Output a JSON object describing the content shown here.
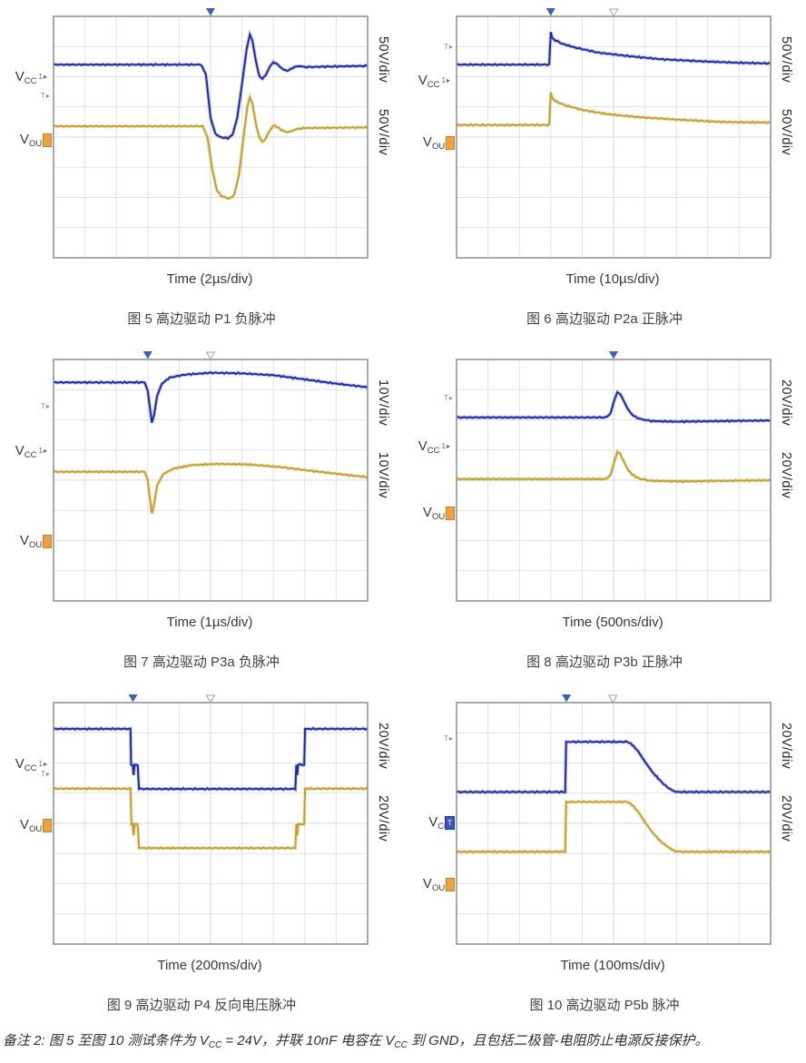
{
  "colors": {
    "vcc": "#1c2aa6",
    "vout": "#c3a02d",
    "grid": "#dfe1e5",
    "grid_center": "#c3c7cc",
    "border": "#8f9499",
    "filled_marker": "#3763b8",
    "hollow_marker": "#9aa2a9",
    "vout_marker_box": "#efa13e",
    "vcc_marker_box": "#3b55c4"
  },
  "labels": {
    "vcc_main": "V",
    "vcc_sub": "CC",
    "vout_main": "V",
    "vout_sub": "OUT",
    "ch1_marker": "1",
    "t_marker": "T"
  },
  "note": {
    "p1": "备注 2: 图 5 至图 10 测试条件为 V",
    "s1": "CC",
    "p2": " = 24V，并联 10nF 电容在 V",
    "s2": "CC",
    "p3": " 到 GND，且包括二极管-电阻防止电源反接保护。"
  },
  "chart_data": [
    {
      "type": "line",
      "caption": "图 5 高边驱动 P1 负脉冲",
      "xlabel": "Time (2µs/div)",
      "scale_labels": [
        "50V/div",
        "50V/div"
      ],
      "x_divisions": 10,
      "y_divisions": 8,
      "trigger": {
        "filled_x": 5.0,
        "hollow_x": null
      },
      "label_y": {
        "vcc": 0.255,
        "vout": 0.515,
        "t": 0.335
      },
      "vcc_marker": "arrow",
      "series": [
        {
          "name": "VCC",
          "color_key": "vcc",
          "points": [
            [
              0,
              1.6
            ],
            [
              4.7,
              1.6
            ],
            [
              4.85,
              1.92
            ],
            [
              5.0,
              3.36
            ],
            [
              5.15,
              3.88
            ],
            [
              5.3,
              4.0
            ],
            [
              5.55,
              4.04
            ],
            [
              5.7,
              3.92
            ],
            [
              5.85,
              3.36
            ],
            [
              6.0,
              2.24
            ],
            [
              6.15,
              1.08
            ],
            [
              6.25,
              0.6
            ],
            [
              6.33,
              0.8
            ],
            [
              6.45,
              1.52
            ],
            [
              6.55,
              1.96
            ],
            [
              6.65,
              2.08
            ],
            [
              6.75,
              1.96
            ],
            [
              6.9,
              1.64
            ],
            [
              7.0,
              1.52
            ],
            [
              7.15,
              1.6
            ],
            [
              7.3,
              1.76
            ],
            [
              7.45,
              1.8
            ],
            [
              7.6,
              1.72
            ],
            [
              7.8,
              1.64
            ],
            [
              8.0,
              1.68
            ],
            [
              10,
              1.64
            ]
          ]
        },
        {
          "name": "VOUT",
          "color_key": "vout",
          "points": [
            [
              0,
              3.64
            ],
            [
              4.75,
              3.64
            ],
            [
              4.9,
              4.0
            ],
            [
              5.05,
              5.04
            ],
            [
              5.2,
              5.76
            ],
            [
              5.35,
              5.96
            ],
            [
              5.6,
              6.04
            ],
            [
              5.75,
              5.92
            ],
            [
              5.9,
              5.28
            ],
            [
              6.05,
              4.0
            ],
            [
              6.17,
              3.0
            ],
            [
              6.25,
              2.68
            ],
            [
              6.33,
              2.88
            ],
            [
              6.45,
              3.6
            ],
            [
              6.55,
              4.0
            ],
            [
              6.65,
              4.16
            ],
            [
              6.75,
              4.04
            ],
            [
              6.9,
              3.76
            ],
            [
              7.0,
              3.62
            ],
            [
              7.15,
              3.68
            ],
            [
              7.3,
              3.8
            ],
            [
              7.5,
              3.84
            ],
            [
              7.7,
              3.74
            ],
            [
              8.0,
              3.7
            ],
            [
              10,
              3.68
            ]
          ]
        }
      ]
    },
    {
      "type": "line",
      "caption": "图 6 高边驱动 P2a 正脉冲",
      "xlabel": "Time (10µs/div)",
      "scale_labels": [
        "50V/div",
        "50V/div"
      ],
      "x_divisions": 10,
      "y_divisions": 8,
      "trigger": {
        "filled_x": 3.0,
        "hollow_x": 5.0
      },
      "label_y": {
        "vcc": 0.27,
        "vout": 0.525,
        "t": 0.13
      },
      "vcc_marker": "arrow",
      "series": [
        {
          "name": "VCC",
          "color_key": "vcc",
          "points": [
            [
              0,
              1.6
            ],
            [
              2.95,
              1.6
            ],
            [
              3.0,
              0.52
            ],
            [
              3.05,
              0.72
            ],
            [
              3.15,
              0.8
            ],
            [
              3.4,
              0.92
            ],
            [
              3.8,
              1.04
            ],
            [
              4.5,
              1.2
            ],
            [
              5.5,
              1.32
            ],
            [
              6.5,
              1.42
            ],
            [
              7.8,
              1.49
            ],
            [
              9.0,
              1.54
            ],
            [
              10,
              1.56
            ]
          ]
        },
        {
          "name": "VOUT",
          "color_key": "vout",
          "points": [
            [
              0,
              3.6
            ],
            [
              2.95,
              3.6
            ],
            [
              3.0,
              2.52
            ],
            [
              3.05,
              2.72
            ],
            [
              3.2,
              2.84
            ],
            [
              3.5,
              2.96
            ],
            [
              4.0,
              3.1
            ],
            [
              4.8,
              3.24
            ],
            [
              5.8,
              3.34
            ],
            [
              7.0,
              3.42
            ],
            [
              8.5,
              3.5
            ],
            [
              10,
              3.52
            ]
          ]
        }
      ]
    },
    {
      "type": "line",
      "caption": "图 7 高边驱动 P3a 负脉冲",
      "xlabel": "Time (1µs/div)",
      "scale_labels": [
        "10V/div",
        "10V/div"
      ],
      "x_divisions": 10,
      "y_divisions": 8,
      "trigger": {
        "filled_x": 3.0,
        "hollow_x": 5.0
      },
      "label_y": {
        "vcc": 0.385,
        "vout": 0.755,
        "t": 0.2
      },
      "vcc_marker": "arrow",
      "series": [
        {
          "name": "VCC",
          "color_key": "vcc",
          "points": [
            [
              0,
              0.76
            ],
            [
              2.9,
              0.76
            ],
            [
              3.0,
              1.04
            ],
            [
              3.07,
              1.6
            ],
            [
              3.13,
              2.1
            ],
            [
              3.2,
              1.84
            ],
            [
              3.3,
              1.2
            ],
            [
              3.45,
              0.8
            ],
            [
              3.7,
              0.6
            ],
            [
              4.2,
              0.5
            ],
            [
              5.0,
              0.44
            ],
            [
              6.0,
              0.46
            ],
            [
              7.0,
              0.52
            ],
            [
              8.0,
              0.66
            ],
            [
              9.0,
              0.8
            ],
            [
              10,
              0.92
            ]
          ]
        },
        {
          "name": "VOUT",
          "color_key": "vout",
          "points": [
            [
              0,
              3.72
            ],
            [
              2.9,
              3.72
            ],
            [
              3.0,
              4.0
            ],
            [
              3.07,
              4.6
            ],
            [
              3.13,
              5.1
            ],
            [
              3.2,
              4.8
            ],
            [
              3.3,
              4.16
            ],
            [
              3.5,
              3.8
            ],
            [
              3.8,
              3.62
            ],
            [
              4.4,
              3.5
            ],
            [
              5.2,
              3.46
            ],
            [
              6.2,
              3.48
            ],
            [
              7.2,
              3.56
            ],
            [
              8.3,
              3.7
            ],
            [
              9.3,
              3.82
            ],
            [
              10,
              3.9
            ]
          ]
        }
      ]
    },
    {
      "type": "line",
      "caption": "图 8 高边驱动 P3b 正脉冲",
      "xlabel": "Time (500ns/div)",
      "scale_labels": [
        "20V/div",
        "20V/div"
      ],
      "x_divisions": 10,
      "y_divisions": 8,
      "trigger": {
        "filled_x": 5.0,
        "hollow_x": null
      },
      "label_y": {
        "vcc": 0.365,
        "vout": 0.64,
        "t": 0.165
      },
      "vcc_marker": "arrow",
      "series": [
        {
          "name": "VCC",
          "color_key": "vcc",
          "points": [
            [
              0,
              1.92
            ],
            [
              4.75,
              1.92
            ],
            [
              4.9,
              1.8
            ],
            [
              5.02,
              1.36
            ],
            [
              5.12,
              1.08
            ],
            [
              5.2,
              1.12
            ],
            [
              5.3,
              1.32
            ],
            [
              5.45,
              1.64
            ],
            [
              5.6,
              1.84
            ],
            [
              5.8,
              1.96
            ],
            [
              6.2,
              2.04
            ],
            [
              7.0,
              2.06
            ],
            [
              8.5,
              2.04
            ],
            [
              10,
              2.02
            ]
          ]
        },
        {
          "name": "VOUT",
          "color_key": "vout",
          "points": [
            [
              0,
              3.96
            ],
            [
              4.75,
              3.96
            ],
            [
              4.9,
              3.84
            ],
            [
              5.02,
              3.4
            ],
            [
              5.12,
              3.06
            ],
            [
              5.2,
              3.12
            ],
            [
              5.3,
              3.32
            ],
            [
              5.45,
              3.64
            ],
            [
              5.6,
              3.82
            ],
            [
              5.8,
              3.94
            ],
            [
              6.2,
              4.02
            ],
            [
              7.2,
              4.04
            ],
            [
              8.5,
              4.02
            ],
            [
              10,
              4.0
            ]
          ]
        }
      ]
    },
    {
      "type": "line",
      "caption": "图 9 高边驱动 P4 反向电压脉冲",
      "xlabel": "Time (200ms/div)",
      "scale_labels": [
        "20V/div",
        "20V/div"
      ],
      "x_divisions": 10,
      "y_divisions": 8,
      "trigger": {
        "filled_x": 2.53,
        "hollow_x": 5.0
      },
      "label_y": {
        "vcc": 0.26,
        "vout": 0.51,
        "t": 0.3
      },
      "vcc_marker": "arrow",
      "series": [
        {
          "name": "VCC",
          "color_key": "vcc",
          "points": [
            [
              0,
              0.87
            ],
            [
              2.45,
              0.87
            ],
            [
              2.47,
              2.06
            ],
            [
              2.52,
              2.06
            ],
            [
              2.55,
              2.4
            ],
            [
              2.58,
              2.06
            ],
            [
              2.68,
              2.06
            ],
            [
              2.72,
              2.86
            ],
            [
              7.7,
              2.86
            ],
            [
              7.73,
              2.06
            ],
            [
              7.76,
              2.4
            ],
            [
              7.79,
              2.06
            ],
            [
              7.98,
              2.06
            ],
            [
              8.01,
              0.87
            ],
            [
              10,
              0.87
            ]
          ]
        },
        {
          "name": "VOUT",
          "color_key": "vout",
          "points": [
            [
              0,
              2.85
            ],
            [
              2.45,
              2.85
            ],
            [
              2.48,
              4.03
            ],
            [
              2.52,
              4.03
            ],
            [
              2.55,
              4.4
            ],
            [
              2.58,
              4.03
            ],
            [
              2.68,
              4.03
            ],
            [
              2.72,
              4.82
            ],
            [
              7.7,
              4.82
            ],
            [
              7.73,
              4.03
            ],
            [
              7.76,
              4.4
            ],
            [
              7.79,
              4.03
            ],
            [
              7.98,
              4.03
            ],
            [
              8.01,
              2.85
            ],
            [
              10,
              2.85
            ]
          ]
        }
      ]
    },
    {
      "type": "line",
      "caption": "图 10 高边驱动 P5b 脉冲",
      "xlabel": "Time (100ms/div)",
      "scale_labels": [
        "20V/div",
        "20V/div"
      ],
      "x_divisions": 10,
      "y_divisions": 8,
      "trigger": {
        "filled_x": 3.5,
        "hollow_x": 4.98
      },
      "label_y": {
        "vcc": 0.5,
        "vout": 0.755,
        "t": 0.155
      },
      "vcc_marker": "box",
      "series": [
        {
          "name": "VCC",
          "color_key": "vcc",
          "points": [
            [
              0,
              2.96
            ],
            [
              3.46,
              2.96
            ],
            [
              3.49,
              1.3
            ],
            [
              5.45,
              1.3
            ],
            [
              5.6,
              1.4
            ],
            [
              5.8,
              1.64
            ],
            [
              6.0,
              1.96
            ],
            [
              6.25,
              2.32
            ],
            [
              6.5,
              2.6
            ],
            [
              6.7,
              2.8
            ],
            [
              6.9,
              2.92
            ],
            [
              7.0,
              2.96
            ],
            [
              10,
              2.96
            ]
          ]
        },
        {
          "name": "VOUT",
          "color_key": "vout",
          "points": [
            [
              0,
              4.94
            ],
            [
              3.46,
              4.94
            ],
            [
              3.49,
              3.29
            ],
            [
              5.45,
              3.29
            ],
            [
              5.6,
              3.4
            ],
            [
              5.8,
              3.64
            ],
            [
              6.0,
              3.96
            ],
            [
              6.25,
              4.32
            ],
            [
              6.5,
              4.6
            ],
            [
              6.75,
              4.8
            ],
            [
              6.95,
              4.92
            ],
            [
              7.1,
              4.94
            ],
            [
              10,
              4.94
            ]
          ]
        }
      ]
    }
  ]
}
